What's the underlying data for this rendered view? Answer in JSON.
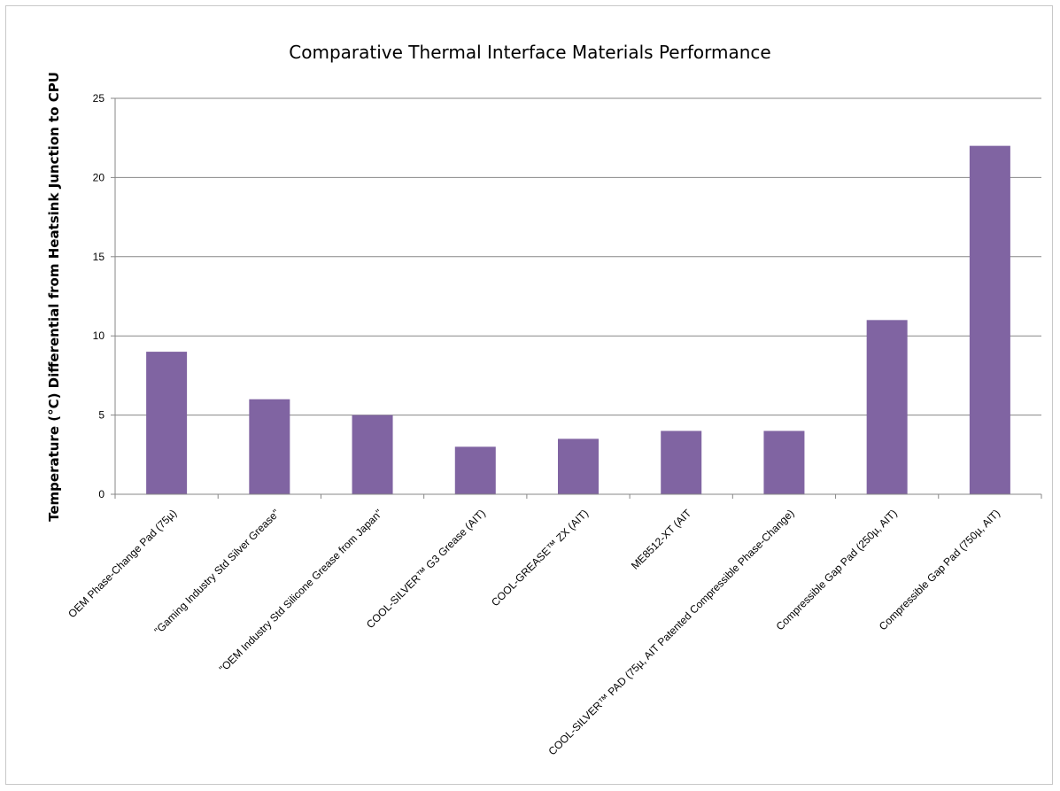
{
  "chart_data": {
    "type": "bar",
    "title": "Comparative Thermal Interface Materials Performance",
    "xlabel": "",
    "ylabel": "Temperature (°C) Differential from Heatsink Junction to CPU",
    "ylim": [
      0,
      25
    ],
    "yticks": [
      0,
      5,
      10,
      15,
      20,
      25
    ],
    "grid": true,
    "legend": "none",
    "bar_color": "#8064a2",
    "categories": [
      "OEM Phase-Change Pad (75µ)",
      "\"Gaming Industry Std Silver Grease\"",
      "\"OEM Industry Std Silicone Grease from Japan\"",
      "COOL-SILVER™ G3 Grease (AIT)",
      "COOL-GREASE™ ZX (AIT)",
      "ME8512-XT (AIT",
      "COOL-SILVER™ PAD (75µ, AIT Patented Compressible Phase-Change)",
      "Compressible Gap Pad (250µ, AIT)",
      "Compressible Gap Pad (750µ, AIT)"
    ],
    "values": [
      9,
      6,
      5,
      3,
      3.5,
      4,
      4,
      11,
      22
    ]
  }
}
